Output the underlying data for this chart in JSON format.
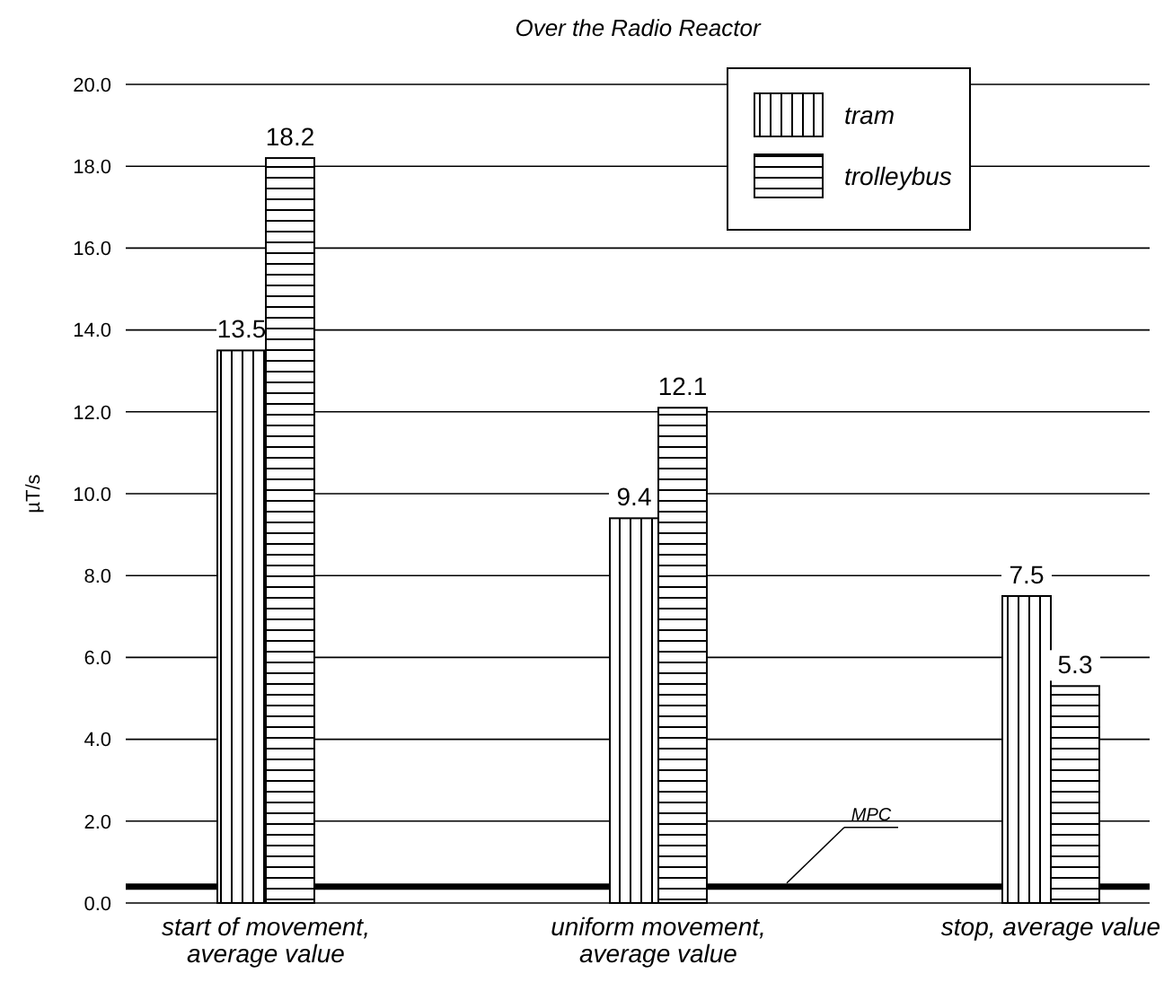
{
  "chart_data": {
    "type": "bar",
    "title": "Over the Radio Reactor",
    "ylabel": "µT/s",
    "categories": [
      "start of movement, average value",
      "uniform movement, average value",
      "stop, average value"
    ],
    "series": [
      {
        "name": "tram",
        "color": "#000000",
        "values": [
          13.5,
          9.4,
          7.5
        ]
      },
      {
        "name": "trolleybus",
        "color": "#000000",
        "values": [
          18.2,
          12.1,
          5.3
        ]
      }
    ],
    "ylim": [
      0,
      20
    ],
    "yticks": [
      {
        "value": 0,
        "label": "0.0"
      },
      {
        "value": 2,
        "label": "2.0"
      },
      {
        "value": 4,
        "label": "4.0"
      },
      {
        "value": 6,
        "label": "6.0"
      },
      {
        "value": 8,
        "label": "8.0"
      },
      {
        "value": 10,
        "label": "10.0"
      },
      {
        "value": 12,
        "label": "12.0"
      },
      {
        "value": 14,
        "label": "14.0"
      },
      {
        "value": 16,
        "label": "16.0"
      },
      {
        "value": 18,
        "label": "18.0"
      },
      {
        "value": 20,
        "label": "20.0"
      }
    ],
    "grid": "y",
    "legend": "top right",
    "data_labels": true,
    "ref_lines": [
      {
        "axis": "y",
        "value": 0.4,
        "label": "MPC",
        "color": "#000000"
      }
    ]
  }
}
